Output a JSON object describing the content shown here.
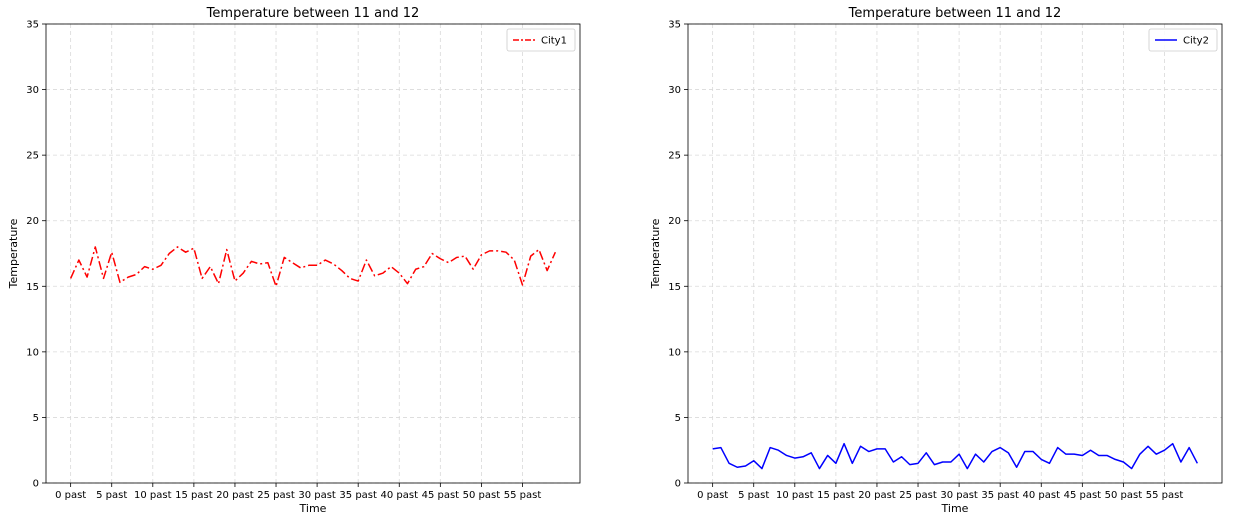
{
  "chart_data": [
    {
      "type": "line",
      "title": "Temperature between 11 and 12",
      "xlabel": "Time",
      "ylabel": "Temperature",
      "xlim": [
        -3,
        62
      ],
      "ylim": [
        0,
        35
      ],
      "x_ticks": [
        0,
        5,
        10,
        15,
        20,
        25,
        30,
        35,
        40,
        45,
        50,
        55
      ],
      "x_tick_labels": [
        "0 past",
        "5 past",
        "10 past",
        "15 past",
        "20 past",
        "25 past",
        "30 past",
        "35 past",
        "40 past",
        "45 past",
        "50 past",
        "55 past"
      ],
      "y_ticks": [
        0,
        5,
        10,
        15,
        20,
        25,
        30,
        35
      ],
      "y_tick_labels": [
        "0",
        "5",
        "10",
        "15",
        "20",
        "25",
        "30",
        "35"
      ],
      "grid": true,
      "legend_position": "top-right",
      "series": [
        {
          "name": "City1",
          "color": "#ff0000",
          "line_style": "dashdot",
          "x": [
            0,
            1,
            2,
            3,
            4,
            5,
            6,
            7,
            8,
            9,
            10,
            11,
            12,
            13,
            14,
            15,
            16,
            17,
            18,
            19,
            20,
            21,
            22,
            23,
            24,
            25,
            26,
            27,
            28,
            29,
            30,
            31,
            32,
            33,
            34,
            35,
            36,
            37,
            38,
            39,
            40,
            41,
            42,
            43,
            44,
            45,
            46,
            47,
            48,
            49,
            50,
            51,
            52,
            53,
            54,
            55,
            56,
            57,
            58,
            59
          ],
          "values": [
            15.6,
            17.0,
            15.7,
            18.0,
            15.6,
            17.6,
            15.3,
            15.7,
            15.9,
            16.5,
            16.3,
            16.6,
            17.5,
            18.0,
            17.6,
            17.9,
            15.6,
            16.5,
            15.2,
            17.8,
            15.4,
            16.0,
            16.9,
            16.7,
            16.8,
            15.0,
            17.2,
            16.8,
            16.4,
            16.6,
            16.6,
            17.0,
            16.7,
            16.2,
            15.6,
            15.4,
            17.0,
            15.8,
            16.0,
            16.5,
            16.0,
            15.2,
            16.3,
            16.5,
            17.5,
            17.1,
            16.8,
            17.2,
            17.3,
            16.3,
            17.4,
            17.7,
            17.7,
            17.6,
            17.0,
            15.1,
            17.3,
            17.8,
            16.2,
            17.6
          ]
        }
      ]
    },
    {
      "type": "line",
      "title": "Temperature between 11 and 12",
      "xlabel": "Time",
      "ylabel": "Temperature",
      "xlim": [
        -3,
        62
      ],
      "ylim": [
        0,
        35
      ],
      "x_ticks": [
        0,
        5,
        10,
        15,
        20,
        25,
        30,
        35,
        40,
        45,
        50,
        55
      ],
      "x_tick_labels": [
        "0 past",
        "5 past",
        "10 past",
        "15 past",
        "20 past",
        "25 past",
        "30 past",
        "35 past",
        "40 past",
        "45 past",
        "50 past",
        "55 past"
      ],
      "y_ticks": [
        0,
        5,
        10,
        15,
        20,
        25,
        30,
        35
      ],
      "y_tick_labels": [
        "0",
        "5",
        "10",
        "15",
        "20",
        "25",
        "30",
        "35"
      ],
      "grid": true,
      "legend_position": "top-right",
      "series": [
        {
          "name": "City2",
          "color": "#0000ff",
          "line_style": "solid",
          "x": [
            0,
            1,
            2,
            3,
            4,
            5,
            6,
            7,
            8,
            9,
            10,
            11,
            12,
            13,
            14,
            15,
            16,
            17,
            18,
            19,
            20,
            21,
            22,
            23,
            24,
            25,
            26,
            27,
            28,
            29,
            30,
            31,
            32,
            33,
            34,
            35,
            36,
            37,
            38,
            39,
            40,
            41,
            42,
            43,
            44,
            45,
            46,
            47,
            48,
            49,
            50,
            51,
            52,
            53,
            54,
            55,
            56,
            57,
            58,
            59
          ],
          "values": [
            2.6,
            2.7,
            1.5,
            1.2,
            1.3,
            1.7,
            1.1,
            2.7,
            2.5,
            2.1,
            1.9,
            2.0,
            2.3,
            1.1,
            2.1,
            1.5,
            3.0,
            1.5,
            2.8,
            2.4,
            2.6,
            2.6,
            1.6,
            2.0,
            1.4,
            1.5,
            2.3,
            1.4,
            1.6,
            1.6,
            2.2,
            1.1,
            2.2,
            1.6,
            2.4,
            2.7,
            2.3,
            1.2,
            2.4,
            2.4,
            1.8,
            1.5,
            2.7,
            2.2,
            2.2,
            2.1,
            2.5,
            2.1,
            2.1,
            1.8,
            1.6,
            1.1,
            2.2,
            2.8,
            2.2,
            2.5,
            3.0,
            1.6,
            2.7,
            1.5
          ]
        }
      ]
    }
  ]
}
